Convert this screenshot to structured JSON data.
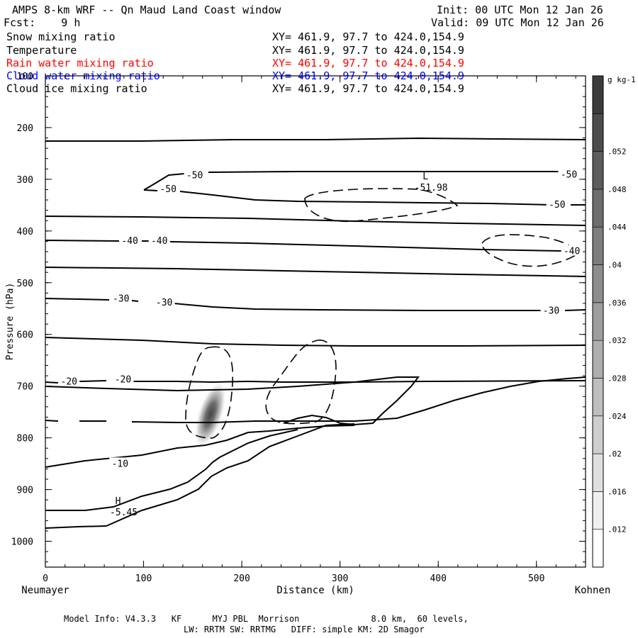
{
  "header": {
    "title": "AMPS 8-km WRF -- Qn Maud Land Coast window",
    "init": "Init: 00 UTC Mon 12 Jan 26",
    "forecast": "Fcst:    9 h",
    "valid": "Valid: 09 UTC Mon 12 Jan 26"
  },
  "fields": [
    {
      "name": "Snow mixing ratio",
      "xy": "XY= 461.9, 97.7 to 424.0,154.9",
      "color": "#000000"
    },
    {
      "name": "Temperature",
      "xy": "XY= 461.9, 97.7 to 424.0,154.9",
      "color": "#000000"
    },
    {
      "name": "Rain water mixing ratio",
      "xy": "XY= 461.9, 97.7 to 424.0,154.9",
      "color": "#ff0000"
    },
    {
      "name": "Cloud water mixing ratio",
      "xy": "XY= 461.9, 97.7 to 424.0,154.9",
      "color": "#0000ff"
    },
    {
      "name": "Cloud ice mixing ratio",
      "xy": "XY= 461.9, 97.7 to 424.0,154.9",
      "color": "#000000"
    }
  ],
  "footer": {
    "line1": "Model Info: V4.3.3   KF      MYJ PBL  Morrison              8.0 km,  60 levels,",
    "line2": "LW: RRTM SW: RRTMG   DIFF: simple KM: 2D Smagor"
  },
  "chart_data": {
    "type": "contour cross-section",
    "xlabel": "Distance (km)",
    "ylabel": "Pressure (hPa)",
    "x_left_label": "Neumayer",
    "x_right_label": "Kohnen",
    "xlim": [
      0,
      550
    ],
    "ylim": [
      1050,
      100
    ],
    "xticks": [
      0,
      100,
      200,
      300,
      400,
      500
    ],
    "yticks": [
      100,
      200,
      300,
      400,
      500,
      600,
      700,
      800,
      900,
      1000
    ],
    "colorbar": {
      "unit": "g kg-1",
      "ticks": [
        ".012",
        ".016",
        ".02",
        ".024",
        ".028",
        ".032",
        ".036",
        ".04",
        ".044",
        ".048",
        ".052"
      ],
      "values": [
        0.012,
        0.016,
        0.02,
        0.024,
        0.028,
        0.032,
        0.036,
        0.04,
        0.044,
        0.048,
        0.052
      ],
      "range": [
        0.008,
        0.06
      ]
    },
    "temperature_contour_labels": [
      {
        "text": "-50",
        "x": 152,
        "p": 291
      },
      {
        "text": "-50",
        "x": 125,
        "p": 318
      },
      {
        "text": "-50",
        "x": 533,
        "p": 290
      },
      {
        "text": "-50",
        "x": 521,
        "p": 348
      },
      {
        "text": "-40",
        "x": 86,
        "p": 418
      },
      {
        "text": "-40",
        "x": 116,
        "p": 418
      },
      {
        "text": "-40",
        "x": 536,
        "p": 438
      },
      {
        "text": "-30",
        "x": 77,
        "p": 530
      },
      {
        "text": "-30",
        "x": 121,
        "p": 537
      },
      {
        "text": "-30",
        "x": 515,
        "p": 553
      },
      {
        "text": "-20",
        "x": 24,
        "p": 690
      },
      {
        "text": "-20",
        "x": 79,
        "p": 686
      },
      {
        "text": "-10",
        "x": 76,
        "p": 849
      }
    ],
    "extrema": [
      {
        "letter": "L",
        "value": "-51.98",
        "x": 387,
        "p": 300
      },
      {
        "letter": "H",
        "value": "-5.45",
        "x": 74,
        "p": 928
      }
    ],
    "snow_maximum": {
      "x": 168,
      "p": 755,
      "value_g_per_kg": 0.054
    }
  }
}
